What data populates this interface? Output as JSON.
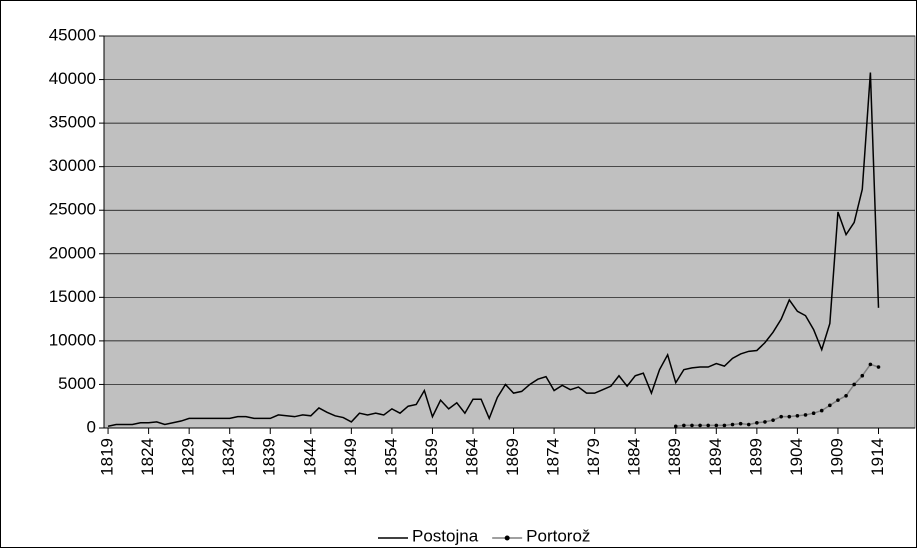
{
  "chart_data": {
    "type": "line",
    "x": [
      1819,
      1820,
      1821,
      1822,
      1823,
      1824,
      1825,
      1826,
      1827,
      1828,
      1829,
      1830,
      1831,
      1832,
      1833,
      1834,
      1835,
      1836,
      1837,
      1838,
      1839,
      1840,
      1841,
      1842,
      1843,
      1844,
      1845,
      1846,
      1847,
      1848,
      1849,
      1850,
      1851,
      1852,
      1853,
      1854,
      1855,
      1856,
      1857,
      1858,
      1859,
      1860,
      1861,
      1862,
      1863,
      1864,
      1865,
      1866,
      1867,
      1868,
      1869,
      1870,
      1871,
      1872,
      1873,
      1874,
      1875,
      1876,
      1877,
      1878,
      1879,
      1880,
      1881,
      1882,
      1883,
      1884,
      1885,
      1886,
      1887,
      1888,
      1889,
      1890,
      1891,
      1892,
      1893,
      1894,
      1895,
      1896,
      1897,
      1898,
      1899,
      1900,
      1901,
      1902,
      1903,
      1904,
      1905,
      1906,
      1907,
      1908,
      1909,
      1910,
      1911,
      1912,
      1913,
      1914
    ],
    "series": [
      {
        "name": "Postojna",
        "color": "#000000",
        "values": [
          200,
          400,
          400,
          400,
          600,
          600,
          700,
          400,
          600,
          800,
          1100,
          1100,
          1100,
          1100,
          1100,
          1100,
          1300,
          1300,
          1100,
          1100,
          1100,
          1500,
          1400,
          1300,
          1500,
          1400,
          2300,
          1800,
          1400,
          1200,
          700,
          1700,
          1500,
          1700,
          1500,
          2200,
          1700,
          2500,
          2700,
          4300,
          1300,
          3200,
          2200,
          2900,
          1700,
          3300,
          3300,
          1100,
          3500,
          5000,
          4000,
          4200,
          5000,
          5600,
          5900,
          4300,
          4900,
          4400,
          4700,
          4000,
          4000,
          4400,
          4800,
          6000,
          4800,
          6000,
          6300,
          4000,
          6700,
          8400,
          5200,
          6700,
          6900,
          7000,
          7000,
          7400,
          7100,
          8000,
          8500,
          8800,
          8900,
          9800,
          11000,
          12500,
          14700,
          13400,
          12900,
          11300,
          9000,
          12000,
          24800,
          22200,
          23600,
          27400,
          40800,
          13800
        ]
      },
      {
        "name": "Portorož",
        "color": "#808080",
        "marker_color": "#000000",
        "values": [
          null,
          null,
          null,
          null,
          null,
          null,
          null,
          null,
          null,
          null,
          null,
          null,
          null,
          null,
          null,
          null,
          null,
          null,
          null,
          null,
          null,
          null,
          null,
          null,
          null,
          null,
          null,
          null,
          null,
          null,
          null,
          null,
          null,
          null,
          null,
          null,
          null,
          null,
          null,
          null,
          null,
          null,
          null,
          null,
          null,
          null,
          null,
          null,
          null,
          null,
          null,
          null,
          null,
          null,
          null,
          null,
          null,
          null,
          null,
          null,
          null,
          null,
          null,
          null,
          null,
          null,
          null,
          null,
          null,
          null,
          200,
          300,
          300,
          300,
          300,
          300,
          300,
          400,
          500,
          400,
          600,
          700,
          900,
          1300,
          1300,
          1400,
          1500,
          1700,
          2000,
          2600,
          3200,
          3700,
          5000,
          6000,
          7300,
          7000
        ]
      }
    ],
    "xlim": [
      1818.5,
      1918.5
    ],
    "xticks": [
      1819,
      1824,
      1829,
      1834,
      1839,
      1844,
      1849,
      1854,
      1859,
      1864,
      1869,
      1874,
      1879,
      1884,
      1889,
      1894,
      1899,
      1904,
      1909,
      1914
    ],
    "ylim": [
      0,
      45000
    ],
    "yticks": [
      0,
      5000,
      10000,
      15000,
      20000,
      25000,
      30000,
      35000,
      40000,
      45000
    ],
    "grid": true,
    "legend": "bottom"
  }
}
